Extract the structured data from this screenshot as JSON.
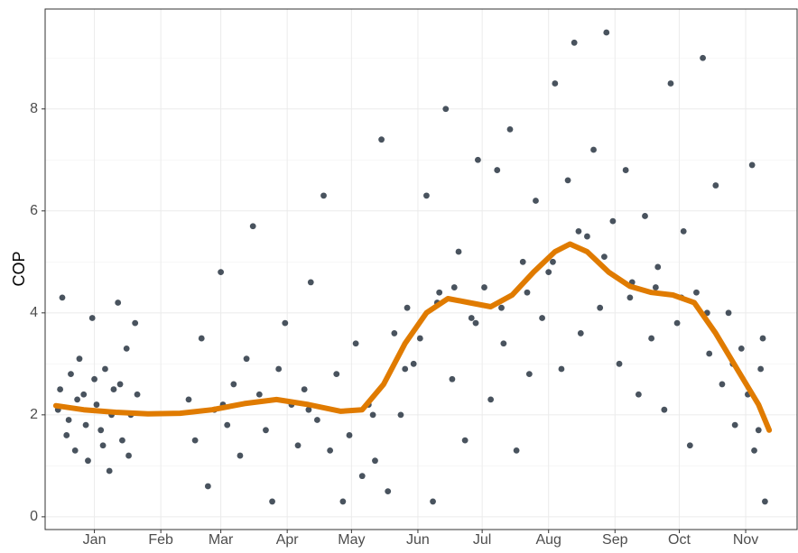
{
  "chart_data": {
    "type": "scatter",
    "y_label": "COP",
    "points": {
      "color": "#1c2836",
      "x": [
        -17,
        -15,
        -13,
        -11,
        -9,
        -7,
        -5,
        -3,
        -1,
        1,
        3,
        5,
        7,
        9,
        11,
        13,
        15,
        17,
        19,
        -16,
        -12,
        -8,
        -4,
        0,
        4,
        8,
        12,
        16,
        20,
        44,
        47,
        50,
        53,
        56,
        59,
        60,
        62,
        65,
        68,
        71,
        74,
        77,
        80,
        83,
        86,
        89,
        92,
        95,
        98,
        100,
        101,
        104,
        107,
        110,
        113,
        116,
        119,
        122,
        125,
        128,
        130,
        131,
        134,
        137,
        140,
        143,
        145,
        146,
        149,
        152,
        155,
        158,
        160,
        161,
        164,
        167,
        168,
        170,
        173,
        176,
        178,
        179,
        182,
        185,
        188,
        190,
        191,
        194,
        197,
        200,
        202,
        203,
        206,
        209,
        212,
        214,
        215,
        218,
        221,
        224,
        226,
        227,
        230,
        233,
        236,
        238,
        239,
        242,
        245,
        248,
        250,
        251,
        254,
        257,
        260,
        262,
        263,
        266,
        269,
        272,
        274,
        275,
        278,
        281,
        284,
        286,
        287,
        290,
        293,
        296,
        298,
        299,
        302,
        305,
        307,
        308,
        310,
        311,
        312,
        313
      ],
      "y": [
        2.1,
        4.3,
        1.6,
        2.8,
        1.3,
        3.1,
        2.4,
        1.1,
        3.9,
        2.2,
        1.7,
        2.9,
        0.9,
        2.5,
        4.2,
        1.5,
        3.3,
        2.0,
        3.8,
        2.5,
        1.9,
        2.3,
        1.8,
        2.7,
        1.4,
        2.0,
        2.6,
        1.2,
        2.4,
        2.3,
        1.5,
        3.5,
        0.6,
        2.1,
        4.8,
        2.2,
        1.8,
        2.6,
        1.2,
        3.1,
        5.7,
        2.4,
        1.7,
        0.3,
        2.9,
        3.8,
        2.2,
        1.4,
        2.5,
        2.1,
        4.6,
        1.9,
        6.3,
        1.3,
        2.8,
        0.3,
        1.6,
        3.4,
        0.8,
        2.2,
        2.0,
        1.1,
        7.4,
        0.5,
        3.6,
        2.0,
        2.9,
        4.1,
        3.0,
        3.5,
        6.3,
        0.3,
        4.2,
        4.4,
        8.0,
        2.7,
        4.5,
        5.2,
        1.5,
        3.9,
        3.8,
        7.0,
        4.5,
        2.3,
        6.8,
        4.1,
        3.4,
        7.6,
        1.3,
        5.0,
        4.4,
        2.8,
        6.2,
        3.9,
        4.8,
        5.0,
        8.5,
        2.9,
        6.6,
        9.3,
        5.6,
        3.6,
        5.5,
        7.2,
        4.1,
        5.1,
        9.5,
        5.8,
        3.0,
        6.8,
        4.3,
        4.6,
        2.4,
        5.9,
        3.5,
        4.5,
        4.9,
        2.1,
        8.5,
        3.8,
        4.3,
        5.6,
        1.4,
        4.4,
        9.0,
        4.0,
        3.2,
        6.5,
        2.6,
        4.0,
        3.0,
        1.8,
        3.3,
        2.4,
        6.9,
        1.3,
        1.7,
        2.9,
        3.5,
        0.3
      ]
    },
    "smooth": {
      "color": "#e07b00",
      "x": [
        -18,
        -5,
        10,
        25,
        40,
        55,
        70,
        85,
        100,
        115,
        125,
        135,
        145,
        155,
        165,
        175,
        185,
        195,
        205,
        215,
        222,
        230,
        240,
        250,
        260,
        270,
        280,
        290,
        300,
        310,
        315
      ],
      "y": [
        2.18,
        2.1,
        2.05,
        2.02,
        2.03,
        2.1,
        2.22,
        2.3,
        2.2,
        2.07,
        2.1,
        2.6,
        3.4,
        4.0,
        4.28,
        4.2,
        4.12,
        4.35,
        4.8,
        5.2,
        5.35,
        5.2,
        4.8,
        4.52,
        4.4,
        4.35,
        4.2,
        3.6,
        2.9,
        2.2,
        1.7
      ]
    },
    "xlim": [
      -23,
      328
    ],
    "ylim": [
      -0.25,
      9.96
    ],
    "xticks": [
      {
        "value": 0,
        "label": "Jan"
      },
      {
        "value": 31,
        "label": "Feb"
      },
      {
        "value": 59,
        "label": "Mar"
      },
      {
        "value": 90,
        "label": "Apr"
      },
      {
        "value": 120,
        "label": "May"
      },
      {
        "value": 151,
        "label": "Jun"
      },
      {
        "value": 181,
        "label": "Jul"
      },
      {
        "value": 212,
        "label": "Aug"
      },
      {
        "value": 243,
        "label": "Sep"
      },
      {
        "value": 273,
        "label": "Oct"
      },
      {
        "value": 304,
        "label": "Nov"
      }
    ],
    "yticks": [
      0,
      2,
      4,
      6,
      8
    ],
    "y_minor_ticks": [
      1,
      3,
      5,
      7,
      9
    ],
    "grid": true
  }
}
